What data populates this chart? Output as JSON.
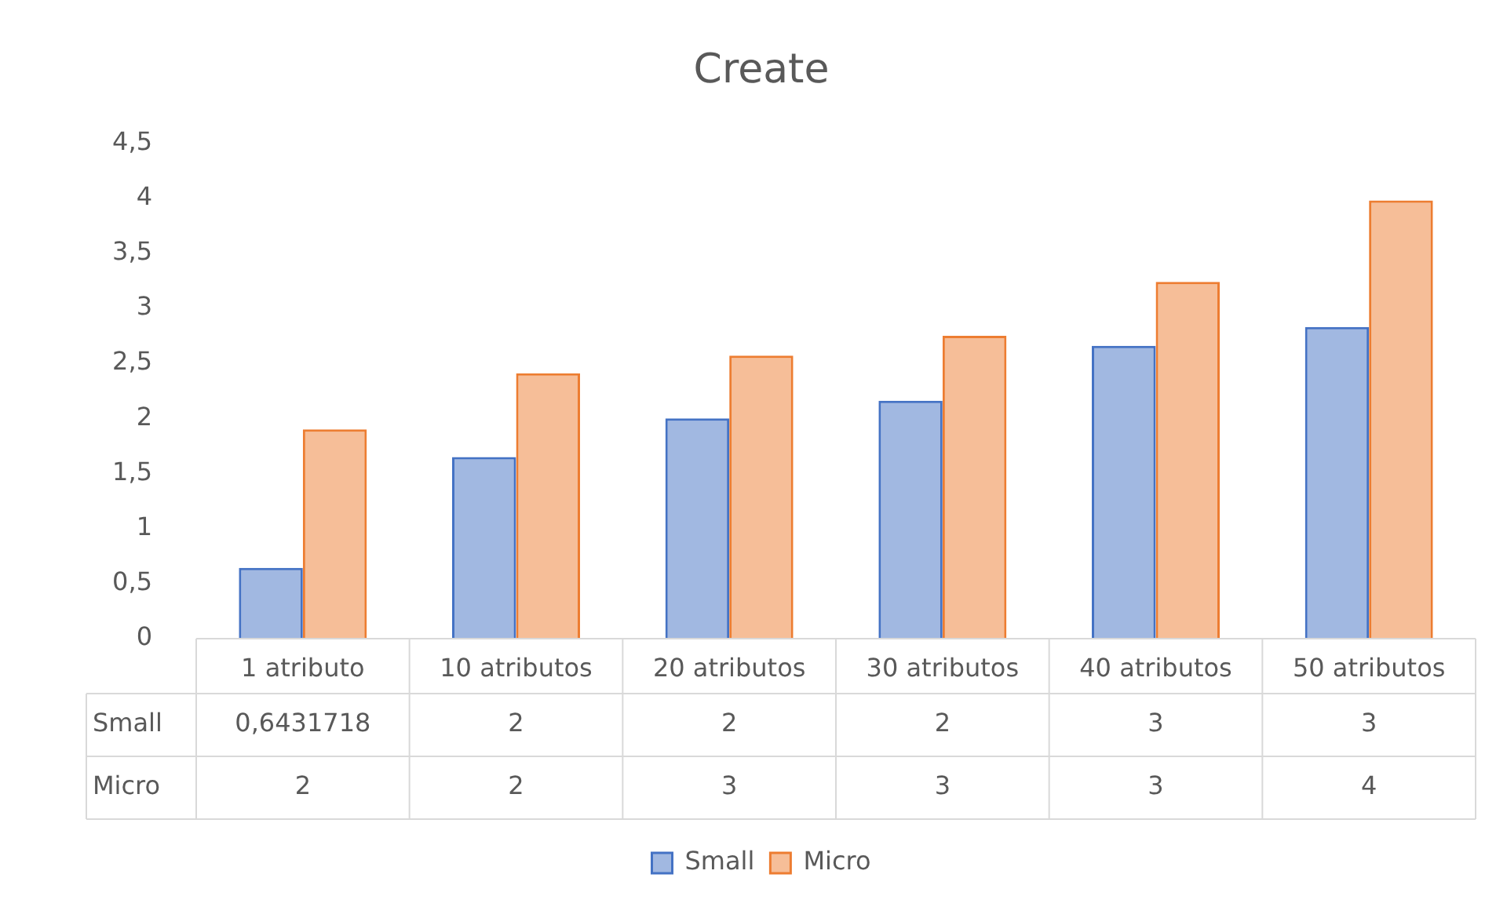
{
  "chart_data": {
    "type": "bar",
    "title": "Create",
    "categories": [
      "1 atributo",
      "10 atributos",
      "20 atributos",
      "30 atributos",
      "40 atributos",
      "50 atributos"
    ],
    "series": [
      {
        "name": "Small",
        "color": "#4472c4",
        "values": [
          0.6431718,
          1.65,
          2.0,
          2.16,
          2.66,
          2.83
        ],
        "value_labels": [
          "0,6431718",
          "2",
          "2",
          "2",
          "3",
          "3"
        ]
      },
      {
        "name": "Micro",
        "color": "#ed7d31",
        "values": [
          1.9,
          2.41,
          2.57,
          2.75,
          3.24,
          3.98
        ],
        "value_labels": [
          "2",
          "2",
          "3",
          "3",
          "3",
          "4"
        ]
      }
    ],
    "ylim": [
      0,
      4.5
    ],
    "yticks": [
      0,
      {
        "value": 0.5,
        "label": "0,5"
      },
      1,
      {
        "value": 1.5,
        "label": "1,5"
      },
      2,
      {
        "value": 2.5,
        "label": "2,5"
      },
      3,
      {
        "value": 3.5,
        "label": "3,5"
      },
      4,
      {
        "value": 4.5,
        "label": "4,5"
      }
    ],
    "grid": false,
    "legend": "bottom"
  }
}
